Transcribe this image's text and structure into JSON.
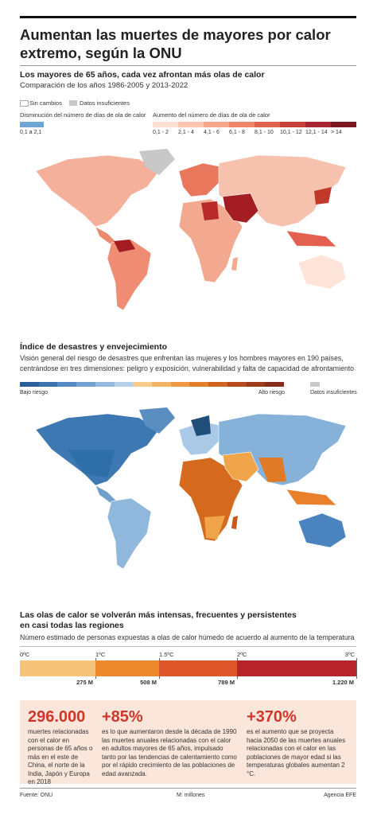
{
  "header": {
    "title": [
      "Aumentan las muertes de mayores por calor",
      "extremo, según la ONU"
    ]
  },
  "heat_map": {
    "title": "Los mayores de 65 años, cada vez afrontan más olas de calor",
    "subtitle": "Comparación de los años 1986-2005 y 2013-2022",
    "legend": {
      "no_change": "Sin cambios",
      "insufficient": "Datos insuficientes",
      "decrease_label": "Disminución del número de días de ola de calor",
      "increase_label": "Aumento del número de días de ola de calor",
      "decrease_range": "0,1 a 2,1",
      "increase_ranges": [
        "0,1 - 2",
        "2,1 - 4",
        "4,1 - 6",
        "6,1 - 8",
        "8,1 - 10",
        "10,1 - 12",
        "12,1 - 14",
        "> 14"
      ]
    }
  },
  "risk_map": {
    "title": "Índice de desastres y envejecimiento",
    "description": [
      "Visión general del riesgo de desastres que enfrentan las mujeres y los hombres mayores en 190 países,",
      "centrándose en tres dimensiones: peligro y exposición, vulnerabilidad y falta de capacidad de afrontamiento"
    ],
    "low": "Bajo riesgo",
    "high": "Alto riesgo",
    "insufficient": "Datos insuficientes"
  },
  "projection": {
    "title": [
      "Las olas de calor se volverán más intensas, frecuentes y persistentes",
      "en casi todas las regiones"
    ],
    "subtitle": "Número estimado de personas expuestas a olas de calor húmedo de acuerdo al aumento de la temperatura",
    "temps": [
      "0ºC",
      "1ºC",
      "1.5ºC",
      "2ºC",
      "3ºC"
    ],
    "people": [
      "275 M",
      "508 M",
      "789 M",
      "1.220 M"
    ]
  },
  "stats": [
    {
      "value": "296.000",
      "text": "muertes relacionadas con el calor en personas de 65 años o más en el este de China, el norte de la India, Japón y Europa en 2018"
    },
    {
      "value": "+85%",
      "text": "es lo que aumentaron desde la década de 1990 las muertes anuales relacionadas con el calor en adultos mayores de 65 años, impulsado tanto por las tendencias de calentamiento como por el rápido crecimiento de las poblaciones de edad avanzada."
    },
    {
      "value": "+370%",
      "text": "es el aumento que se proyecta hacia 2050 de las muertes anuales relacionadas con el calor en las poblaciones de mayor edad si las temperaturas globales aumentan 2 °C."
    }
  ],
  "footer": {
    "source": "Fuente: ONU",
    "note": "M: millones",
    "agency": "Agencia EFE"
  }
}
